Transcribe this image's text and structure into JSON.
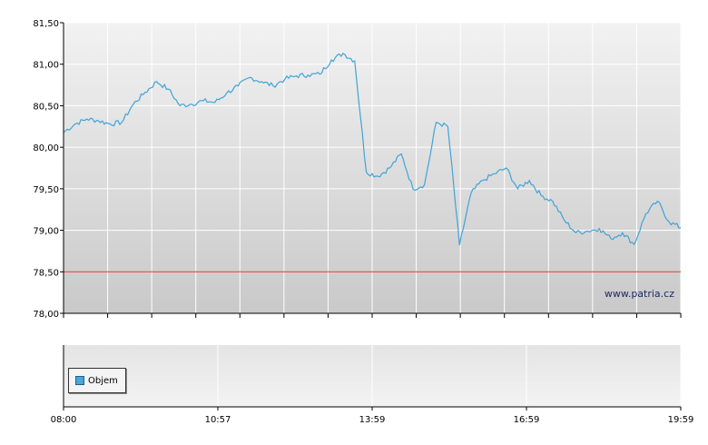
{
  "chart_data": {
    "type": "line",
    "ylim": [
      78.0,
      81.5
    ],
    "y_ticks": [
      "81,50",
      "81,00",
      "80,50",
      "80,00",
      "79,50",
      "79,00",
      "78,50",
      "78,00"
    ],
    "x_tick_labels": [
      "08:00",
      "10:57",
      "13:59",
      "16:59",
      "19:59"
    ],
    "series": [
      {
        "values": [
          80.18,
          80.28,
          80.34,
          80.32,
          80.28,
          80.3,
          80.52,
          80.66,
          80.79,
          80.7,
          80.5,
          80.52,
          80.56,
          80.54,
          80.65,
          80.74,
          80.84,
          80.79,
          80.74,
          80.82,
          80.86,
          80.87,
          80.88,
          81.05,
          81.13,
          81.04,
          79.7,
          79.65,
          79.75,
          79.92,
          79.5,
          79.55,
          80.3,
          80.25,
          78.82,
          79.45,
          79.6,
          79.68,
          79.75,
          79.5,
          79.6,
          79.42,
          79.35,
          79.12,
          78.97,
          78.99,
          79.02,
          78.9,
          78.97,
          78.83,
          79.2,
          79.35,
          79.1,
          79.03
        ]
      }
    ],
    "reference_line": 78.5,
    "colors": {
      "line": "#3fa4d6",
      "reference": "#d03a2a"
    }
  },
  "watermark": "www.patria.cz",
  "volume_panel": {
    "legend_label": "Objem"
  }
}
